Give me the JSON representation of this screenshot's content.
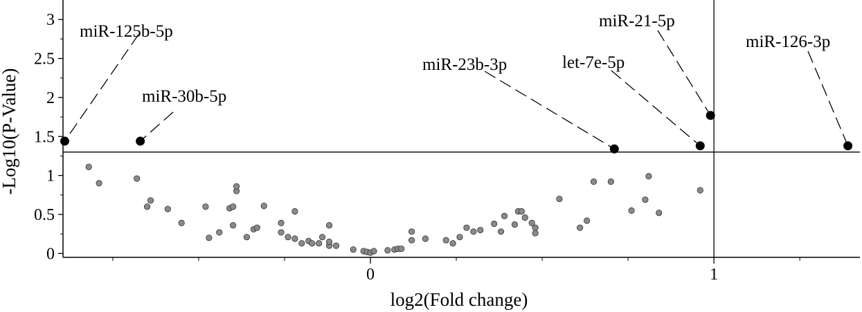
{
  "chart_data": {
    "type": "scatter",
    "title": "",
    "xlabel": "log2(Fold change)",
    "ylabel": "-Log10(P-Value)",
    "xlim": [
      -0.895,
      1.425
    ],
    "ylim": [
      -0.05,
      3.25
    ],
    "x_ticks": [
      0,
      1
    ],
    "x_tick_labels": [
      "0",
      "1"
    ],
    "y_ticks": [
      0,
      0.5,
      1,
      1.5,
      2,
      2.5,
      3
    ],
    "y_tick_labels": [
      "0",
      "0.5",
      "1",
      "1.5",
      "2",
      "2.5",
      "3"
    ],
    "grid": false,
    "reference_lines": {
      "horizontal_y": 1.3,
      "vertical_x": 1.0
    },
    "colors": {
      "nonsignificant": "#8a8a8a",
      "significant": "#000000",
      "line": "#000000"
    },
    "significant_points": [
      {
        "label": "miR-125b-5p",
        "x": -0.89,
        "y": 1.44
      },
      {
        "label": "miR-30b-5p",
        "x": -0.67,
        "y": 1.44
      },
      {
        "label": "miR-23b-3p",
        "x": 0.71,
        "y": 1.34
      },
      {
        "label": "let-7e-5p",
        "x": 0.96,
        "y": 1.38
      },
      {
        "label": "miR-21-5p",
        "x": 0.99,
        "y": 1.77
      },
      {
        "label": "miR-126-3p",
        "x": 1.39,
        "y": 1.38
      }
    ],
    "nonsignificant_points": [
      [
        -0.82,
        1.11
      ],
      [
        -0.79,
        0.9
      ],
      [
        -0.68,
        0.96
      ],
      [
        -0.65,
        0.6
      ],
      [
        -0.64,
        0.68
      ],
      [
        -0.59,
        0.57
      ],
      [
        -0.55,
        0.39
      ],
      [
        -0.48,
        0.6
      ],
      [
        -0.47,
        0.2
      ],
      [
        -0.44,
        0.27
      ],
      [
        -0.41,
        0.58
      ],
      [
        -0.4,
        0.6
      ],
      [
        -0.4,
        0.36
      ],
      [
        -0.39,
        0.8
      ],
      [
        -0.39,
        0.86
      ],
      [
        -0.36,
        0.21
      ],
      [
        -0.34,
        0.31
      ],
      [
        -0.33,
        0.33
      ],
      [
        -0.31,
        0.61
      ],
      [
        -0.26,
        0.39
      ],
      [
        -0.26,
        0.27
      ],
      [
        -0.24,
        0.21
      ],
      [
        -0.22,
        0.54
      ],
      [
        -0.22,
        0.19
      ],
      [
        -0.2,
        0.13
      ],
      [
        -0.18,
        0.16
      ],
      [
        -0.17,
        0.13
      ],
      [
        -0.15,
        0.13
      ],
      [
        -0.14,
        0.21
      ],
      [
        -0.12,
        0.1
      ],
      [
        -0.12,
        0.15
      ],
      [
        -0.12,
        0.36
      ],
      [
        -0.1,
        0.1
      ],
      [
        -0.05,
        0.05
      ],
      [
        -0.02,
        0.03
      ],
      [
        -0.01,
        0.02
      ],
      [
        0.0,
        0.01
      ],
      [
        0.01,
        0.03
      ],
      [
        0.05,
        0.04
      ],
      [
        0.07,
        0.05
      ],
      [
        0.08,
        0.06
      ],
      [
        0.09,
        0.06
      ],
      [
        0.12,
        0.17
      ],
      [
        0.12,
        0.28
      ],
      [
        0.16,
        0.19
      ],
      [
        0.22,
        0.17
      ],
      [
        0.24,
        0.13
      ],
      [
        0.26,
        0.21
      ],
      [
        0.28,
        0.33
      ],
      [
        0.3,
        0.28
      ],
      [
        0.32,
        0.3
      ],
      [
        0.36,
        0.38
      ],
      [
        0.38,
        0.28
      ],
      [
        0.39,
        0.48
      ],
      [
        0.42,
        0.37
      ],
      [
        0.43,
        0.54
      ],
      [
        0.44,
        0.54
      ],
      [
        0.45,
        0.46
      ],
      [
        0.47,
        0.39
      ],
      [
        0.48,
        0.33
      ],
      [
        0.48,
        0.26
      ],
      [
        0.55,
        0.7
      ],
      [
        0.61,
        0.33
      ],
      [
        0.63,
        0.42
      ],
      [
        0.65,
        0.92
      ],
      [
        0.7,
        0.92
      ],
      [
        0.76,
        0.55
      ],
      [
        0.8,
        0.69
      ],
      [
        0.81,
        0.99
      ],
      [
        0.84,
        0.52
      ],
      [
        0.96,
        0.81
      ]
    ]
  }
}
